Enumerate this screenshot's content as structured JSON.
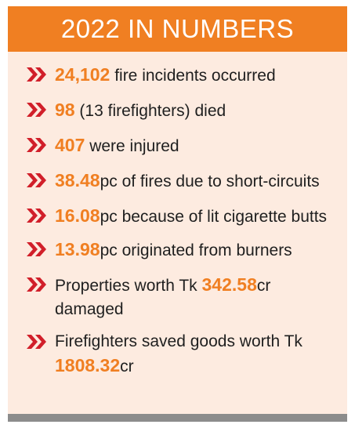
{
  "header": {
    "title": "2022 IN NUMBERS"
  },
  "colors": {
    "accent": "#f07f22",
    "chevron": "#d11f2a",
    "background": "#fdebe0",
    "text": "#1f1f1f",
    "footer": "#8c8c8c"
  },
  "icons": {
    "bullet": "double-chevron-right-icon"
  },
  "items": [
    {
      "number": "24,102",
      "text": " fire incidents occurred"
    },
    {
      "number": "98",
      "text": " (13 firefighters) died"
    },
    {
      "number": "407",
      "text": " were injured"
    },
    {
      "number": "38.48",
      "text": "pc of fires due to short-circuits"
    },
    {
      "number": "16.08",
      "text": "pc because of lit cigarette butts"
    },
    {
      "number": "13.98",
      "text": "pc originated from burners"
    },
    {
      "before": "Properties worth Tk ",
      "number": "342.58",
      "text": "cr damaged"
    },
    {
      "before": "Firefighters saved goods worth Tk ",
      "number": "1808.32",
      "text": "cr"
    }
  ]
}
